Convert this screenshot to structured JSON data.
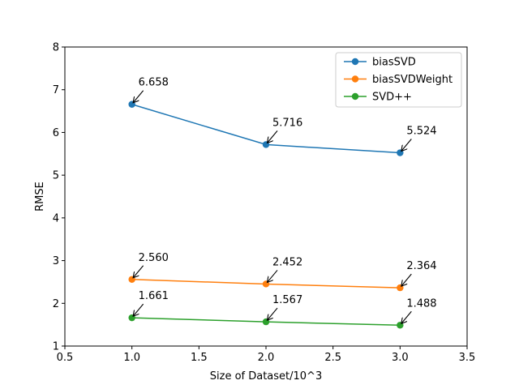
{
  "chart_data": {
    "type": "line",
    "xlabel": "Size of Dataset/10^3",
    "ylabel": "RMSE",
    "xlim": [
      0.5,
      3.5
    ],
    "ylim": [
      1,
      8
    ],
    "xticks": [
      0.5,
      1.0,
      1.5,
      2.0,
      2.5,
      3.0,
      3.5
    ],
    "xtick_labels": [
      "0.5",
      "1.0",
      "1.5",
      "2.0",
      "2.5",
      "3.0",
      "3.5"
    ],
    "yticks": [
      1,
      2,
      3,
      4,
      5,
      6,
      7,
      8
    ],
    "ytick_labels": [
      "1",
      "2",
      "3",
      "4",
      "5",
      "6",
      "7",
      "8"
    ],
    "grid": false,
    "legend_position": "top-right",
    "x": [
      1.0,
      2.0,
      3.0
    ],
    "series": [
      {
        "name": "biasSVD",
        "color": "#1f77b4",
        "values": [
          6.658,
          5.716,
          5.524
        ],
        "labels": [
          "6.658",
          "5.716",
          "5.524"
        ]
      },
      {
        "name": "biasSVDWeight",
        "color": "#ff7f0e",
        "values": [
          2.56,
          2.452,
          2.364
        ],
        "labels": [
          "2.560",
          "2.452",
          "2.364"
        ]
      },
      {
        "name": "SVD++",
        "color": "#2ca02c",
        "values": [
          1.661,
          1.567,
          1.488
        ],
        "labels": [
          "1.661",
          "1.567",
          "1.488"
        ]
      }
    ]
  }
}
